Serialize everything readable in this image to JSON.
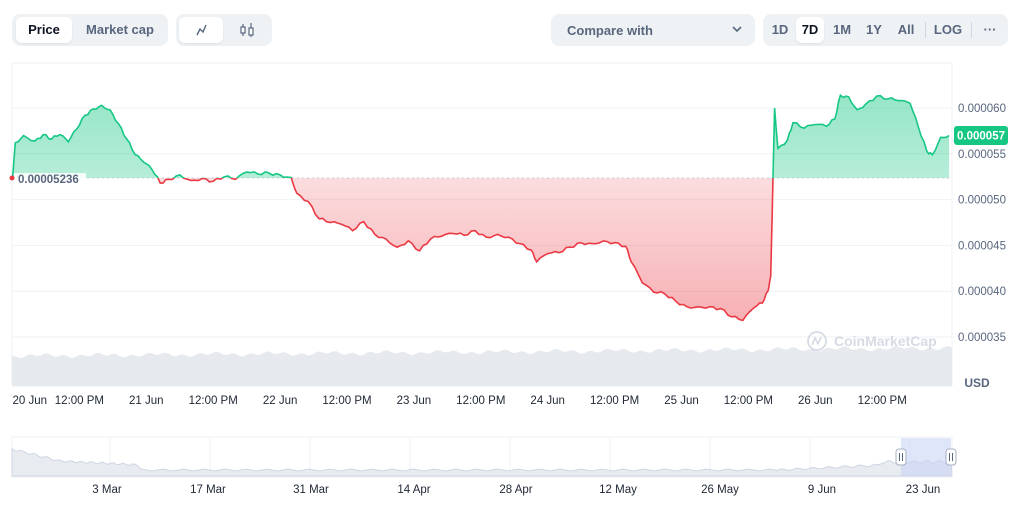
{
  "toolbar": {
    "price_label": "Price",
    "market_cap_label": "Market cap",
    "line_icon": "line-chart-icon",
    "candle_icon": "candlestick-icon",
    "compare_label": "Compare with",
    "ranges": [
      "1D",
      "7D",
      "1M",
      "1Y",
      "All"
    ],
    "active_range": "7D",
    "log_label": "LOG",
    "more_label": "···"
  },
  "colors": {
    "up": "#16c784",
    "down": "#ea3943",
    "axis_text": "#58667e",
    "grid": "#eff2f5",
    "volume": "#e6e9ee"
  },
  "watermark": "CoinMarketCap",
  "currency": "USD",
  "chart_data": {
    "type": "area",
    "title": "",
    "xlabel": "",
    "ylabel": "",
    "ylim": [
      3.25e-05,
      6.38e-05
    ],
    "baseline": 5.236e-05,
    "baseline_label": "0.00005236",
    "current_price": 5.7e-05,
    "current_price_label": "0.000057",
    "y_ticks": [
      6e-05,
      5.5e-05,
      5e-05,
      4.5e-05,
      4e-05,
      3.5e-05
    ],
    "y_tick_labels": [
      "0.000060",
      "0.000055",
      "0.000050",
      "0.000045",
      "0.000040",
      "0.000035"
    ],
    "x_range_hours": [
      0,
      154
    ],
    "x_ticks": [
      {
        "hour": 0,
        "label": "20 Jun"
      },
      {
        "hour": 12,
        "label": "12:00 PM"
      },
      {
        "hour": 24,
        "label": "21 Jun"
      },
      {
        "hour": 36,
        "label": "12:00 PM"
      },
      {
        "hour": 48,
        "label": "22 Jun"
      },
      {
        "hour": 60,
        "label": "12:00 PM"
      },
      {
        "hour": 72,
        "label": "23 Jun"
      },
      {
        "hour": 84,
        "label": "12:00 PM"
      },
      {
        "hour": 96,
        "label": "24 Jun"
      },
      {
        "hour": 108,
        "label": "12:00 PM"
      },
      {
        "hour": 120,
        "label": "25 Jun"
      },
      {
        "hour": 132,
        "label": "12:00 PM"
      },
      {
        "hour": 144,
        "label": "26 Jun"
      },
      {
        "hour": 156,
        "label": "12:00 PM"
      }
    ],
    "series": [
      {
        "values": [
          [
            0,
            5.24e-05
          ],
          [
            0.5,
            5.62e-05
          ],
          [
            2,
            5.7e-05
          ],
          [
            4,
            5.64e-05
          ],
          [
            5.5,
            5.71e-05
          ],
          [
            7,
            5.66e-05
          ],
          [
            8.5,
            5.71e-05
          ],
          [
            10,
            5.63e-05
          ],
          [
            11.5,
            5.77e-05
          ],
          [
            13,
            5.92e-05
          ],
          [
            14.5,
            5.99e-05
          ],
          [
            16,
            6.03e-05
          ],
          [
            17.5,
            5.98e-05
          ],
          [
            19,
            5.83e-05
          ],
          [
            20.5,
            5.66e-05
          ],
          [
            22,
            5.49e-05
          ],
          [
            23.5,
            5.41e-05
          ],
          [
            25,
            5.33e-05
          ],
          [
            26.5,
            5.18e-05
          ],
          [
            28,
            5.22e-05
          ],
          [
            30,
            5.27e-05
          ],
          [
            32,
            5.21e-05
          ],
          [
            34,
            5.23e-05
          ],
          [
            36,
            5.2e-05
          ],
          [
            38,
            5.25e-05
          ],
          [
            40,
            5.22e-05
          ],
          [
            42,
            5.3e-05
          ],
          [
            44,
            5.28e-05
          ],
          [
            46,
            5.29e-05
          ],
          [
            48,
            5.27e-05
          ],
          [
            50,
            5.24e-05
          ],
          [
            51,
            5.07e-05
          ],
          [
            53,
            4.98e-05
          ],
          [
            55,
            4.79e-05
          ],
          [
            57,
            4.75e-05
          ],
          [
            59,
            4.73e-05
          ],
          [
            61,
            4.66e-05
          ],
          [
            63,
            4.76e-05
          ],
          [
            65,
            4.62e-05
          ],
          [
            67,
            4.57e-05
          ],
          [
            69,
            4.48e-05
          ],
          [
            71,
            4.55e-05
          ],
          [
            73,
            4.44e-05
          ],
          [
            75,
            4.57e-05
          ],
          [
            77,
            4.6e-05
          ],
          [
            79,
            4.63e-05
          ],
          [
            81,
            4.61e-05
          ],
          [
            83,
            4.66e-05
          ],
          [
            85,
            4.59e-05
          ],
          [
            87,
            4.62e-05
          ],
          [
            89,
            4.59e-05
          ],
          [
            91,
            4.52e-05
          ],
          [
            93,
            4.45e-05
          ],
          [
            94,
            4.32e-05
          ],
          [
            96,
            4.41e-05
          ],
          [
            98,
            4.42e-05
          ],
          [
            100,
            4.48e-05
          ],
          [
            102,
            4.53e-05
          ],
          [
            104,
            4.52e-05
          ],
          [
            106,
            4.55e-05
          ],
          [
            108,
            4.53e-05
          ],
          [
            110,
            4.49e-05
          ],
          [
            111,
            4.32e-05
          ],
          [
            113,
            4.09e-05
          ],
          [
            115,
            3.99e-05
          ],
          [
            117,
            3.97e-05
          ],
          [
            119,
            3.89e-05
          ],
          [
            121,
            3.83e-05
          ],
          [
            123,
            3.83e-05
          ],
          [
            125,
            3.83e-05
          ],
          [
            127,
            3.81e-05
          ],
          [
            129,
            3.72e-05
          ],
          [
            131,
            3.68e-05
          ],
          [
            133,
            3.82e-05
          ],
          [
            134.5,
            3.87e-05
          ],
          [
            135.5,
            4e-05
          ],
          [
            136,
            4.16e-05
          ],
          [
            136.7,
            6e-05
          ],
          [
            137.3,
            5.56e-05
          ],
          [
            139,
            5.65e-05
          ],
          [
            140,
            5.84e-05
          ],
          [
            142,
            5.78e-05
          ],
          [
            144,
            5.82e-05
          ],
          [
            146,
            5.8e-05
          ],
          [
            147.5,
            5.88e-05
          ],
          [
            148.5,
            6.14e-05
          ],
          [
            150,
            6.12e-05
          ],
          [
            151.5,
            5.98e-05
          ],
          [
            153,
            6.04e-05
          ],
          [
            155,
            6.13e-05
          ],
          [
            157,
            6.1e-05
          ],
          [
            159,
            6.08e-05
          ],
          [
            161,
            6.05e-05
          ],
          [
            162.5,
            5.79e-05
          ],
          [
            164,
            5.53e-05
          ],
          [
            165,
            5.49e-05
          ],
          [
            166.5,
            5.68e-05
          ],
          [
            168,
            5.7e-05
          ]
        ]
      }
    ],
    "navigator_ticks": [
      "3 Mar",
      "17 Mar",
      "31 Mar",
      "14 Apr",
      "28 Apr",
      "12 May",
      "26 May",
      "9 Jun",
      "23 Jun"
    ]
  }
}
